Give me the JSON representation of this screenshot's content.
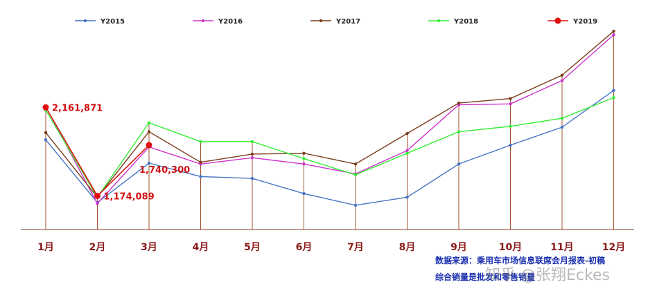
{
  "chart_data": {
    "type": "line",
    "categories": [
      "1月",
      "2月",
      "3月",
      "4月",
      "5月",
      "6月",
      "7月",
      "8月",
      "9月",
      "10月",
      "11月",
      "12月"
    ],
    "series": [
      {
        "name": "Y2015",
        "color": "#4472c4",
        "values": [
          1800000,
          1100000,
          1540000,
          1390000,
          1370000,
          1200000,
          1070000,
          1160000,
          1530000,
          1740000,
          1940000,
          2350000
        ]
      },
      {
        "name": "Y2016",
        "color": "#cc33cc",
        "values": [
          2170000,
          1090000,
          1720000,
          1530000,
          1600000,
          1530000,
          1420000,
          1680000,
          2190000,
          2200000,
          2460000,
          2970000
        ]
      },
      {
        "name": "Y2017",
        "color": "#7b3b1b",
        "values": [
          1880000,
          1160000,
          1890000,
          1550000,
          1640000,
          1650000,
          1530000,
          1870000,
          2210000,
          2260000,
          2520000,
          3010000
        ]
      },
      {
        "name": "Y2018",
        "color": "#33ee33",
        "values": [
          2130000,
          1160000,
          1990000,
          1780000,
          1780000,
          1590000,
          1410000,
          1650000,
          1890000,
          1950000,
          2040000,
          2270000
        ]
      },
      {
        "name": "Y2019",
        "color": "#e01010",
        "values": [
          2161871,
          1174089,
          1740300,
          null,
          null,
          null,
          null,
          null,
          null,
          null,
          null,
          null
        ]
      }
    ],
    "data_labels": [
      {
        "series": "Y2019",
        "index": 0,
        "text": "2,161,871"
      },
      {
        "series": "Y2019",
        "index": 1,
        "text": "1,174,089"
      },
      {
        "series": "Y2019",
        "index": 2,
        "text": "1,740,300"
      }
    ],
    "legend_position": "top",
    "xlabel": "",
    "ylabel": "",
    "ylim": [
      800000,
      3050000
    ],
    "grid": false,
    "drop_lines": true
  },
  "source": {
    "line1": "数据来源：乘用车市场信息联席会月报表-初稿",
    "line2": "综合销量是批发和零售销量"
  },
  "watermark": "知乎 @张翔Eckes"
}
